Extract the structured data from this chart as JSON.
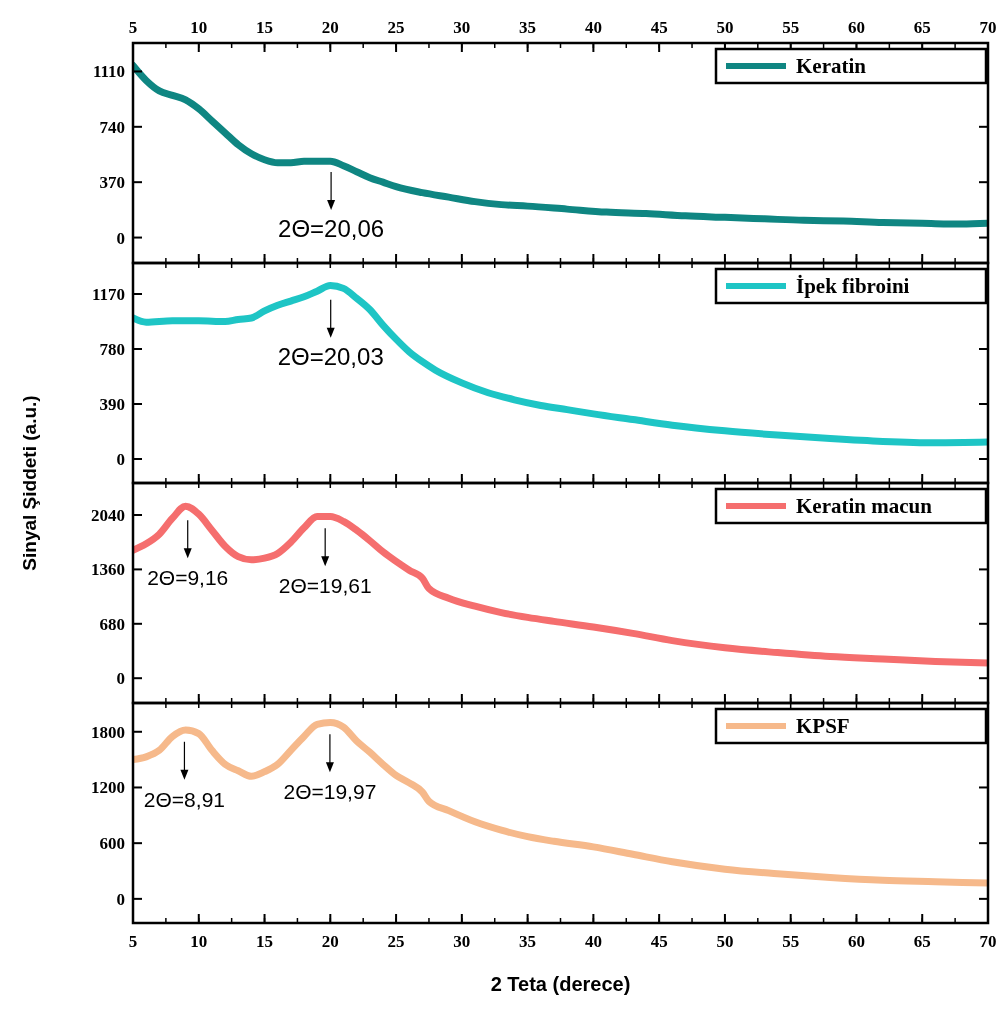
{
  "chart_data": [
    {
      "type": "line",
      "xlim": [
        5,
        70
      ],
      "xticks": [
        5,
        10,
        15,
        20,
        25,
        30,
        35,
        40,
        45,
        50,
        55,
        60,
        65,
        70
      ],
      "x2lim": [
        5,
        70
      ],
      "x2ticks": [
        5,
        10,
        15,
        20,
        25,
        30,
        35,
        40,
        45,
        50,
        55,
        60,
        65,
        70
      ],
      "tick_labels": "y",
      "ylim": [
        -170,
        1300
      ],
      "yticks": [
        0,
        370,
        740,
        1110
      ],
      "legend": "top right",
      "series": [
        {
          "name": "Keratin",
          "color": "#0f8682",
          "x": [
            5,
            6,
            7,
            8,
            9,
            10,
            11,
            12,
            13,
            14,
            15,
            16,
            17,
            18,
            19,
            20,
            21,
            22,
            23,
            24,
            25,
            27,
            29,
            31,
            33,
            35,
            38,
            41,
            44,
            47,
            50,
            53,
            56,
            59,
            62,
            65,
            68,
            70
          ],
          "values": [
            1150,
            1050,
            980,
            950,
            920,
            860,
            780,
            700,
            620,
            560,
            520,
            500,
            500,
            510,
            510,
            510,
            480,
            440,
            400,
            370,
            340,
            300,
            270,
            240,
            220,
            210,
            190,
            170,
            160,
            145,
            135,
            125,
            115,
            110,
            100,
            95,
            90,
            95
          ]
        }
      ],
      "annotations": [
        {
          "text": "2Θ=20,06",
          "x": 20.06,
          "y": 505
        }
      ]
    },
    {
      "type": "line",
      "xlim": [
        5,
        70
      ],
      "xticks": [
        5,
        10,
        15,
        20,
        25,
        30,
        35,
        40,
        45,
        50,
        55,
        60,
        65,
        70
      ],
      "tick_labels": "y",
      "ylim": [
        -170,
        1390
      ],
      "yticks": [
        0,
        390,
        780,
        1170
      ],
      "legend": "top right",
      "series": [
        {
          "name": "İpek fibroini",
          "color": "#1ec5c5",
          "x": [
            5,
            6,
            8,
            10,
            12,
            13,
            14,
            15,
            16,
            17,
            18,
            19,
            20,
            21,
            22,
            23,
            24,
            25,
            26,
            27,
            28,
            30,
            32,
            34,
            36,
            38,
            40,
            43,
            46,
            50,
            54,
            58,
            62,
            66,
            70
          ],
          "values": [
            1000,
            970,
            980,
            980,
            975,
            990,
            1000,
            1050,
            1090,
            1120,
            1150,
            1190,
            1230,
            1210,
            1140,
            1060,
            950,
            850,
            760,
            690,
            630,
            540,
            470,
            420,
            380,
            350,
            320,
            280,
            240,
            200,
            170,
            145,
            125,
            115,
            120
          ]
        }
      ],
      "annotations": [
        {
          "text": "2Θ=20,03",
          "x": 20.03,
          "y": 1200
        }
      ]
    },
    {
      "type": "line",
      "xlim": [
        5,
        70
      ],
      "xticks": [
        5,
        10,
        15,
        20,
        25,
        30,
        35,
        40,
        45,
        50,
        55,
        60,
        65,
        70
      ],
      "tick_labels": "y",
      "ylim": [
        -310,
        2440
      ],
      "yticks": [
        0,
        680,
        1360,
        2040
      ],
      "legend": "top right",
      "ylabel": "Sinyal Şiddeti (a.u.)",
      "series": [
        {
          "name": "Keratin macun",
          "color": "#f56e6e",
          "x": [
            5,
            6,
            7,
            8,
            9,
            10,
            11,
            12,
            13,
            14,
            15,
            16,
            17,
            18,
            19,
            20,
            21,
            22,
            23,
            24,
            25,
            26,
            27,
            27.5,
            29,
            31,
            33,
            35,
            37,
            40,
            43,
            46,
            50,
            54,
            58,
            62,
            66,
            70
          ],
          "values": [
            1600,
            1680,
            1800,
            2000,
            2150,
            2050,
            1850,
            1650,
            1520,
            1480,
            1500,
            1560,
            1700,
            1880,
            2020,
            2020,
            1960,
            1850,
            1720,
            1580,
            1460,
            1350,
            1250,
            1120,
            1000,
            900,
            820,
            760,
            710,
            640,
            560,
            470,
            380,
            320,
            270,
            240,
            210,
            190
          ]
        }
      ],
      "annotations": [
        {
          "text": "2Θ=9,16",
          "x": 9.16,
          "y": 2100
        },
        {
          "text": "2Θ=19,61",
          "x": 19.61,
          "y": 2000
        }
      ]
    },
    {
      "type": "line",
      "xlim": [
        5,
        70
      ],
      "xticks": [
        5,
        10,
        15,
        20,
        25,
        30,
        35,
        40,
        45,
        50,
        55,
        60,
        65,
        70
      ],
      "ylim": [
        -260,
        2110
      ],
      "yticks": [
        0,
        600,
        1200,
        1800
      ],
      "legend": "top right",
      "xlabel": "2 Teta (derece)",
      "series": [
        {
          "name": "KPSF",
          "color": "#f6b98b",
          "x": [
            5,
            6,
            7,
            8,
            9,
            10,
            11,
            12,
            13,
            14,
            15,
            16,
            17,
            18,
            19,
            20,
            21,
            22,
            23,
            24,
            25,
            26,
            27,
            27.5,
            29,
            31,
            33,
            35,
            37,
            40,
            43,
            46,
            50,
            54,
            58,
            62,
            66,
            70
          ],
          "values": [
            1500,
            1530,
            1600,
            1750,
            1820,
            1780,
            1600,
            1450,
            1380,
            1320,
            1370,
            1450,
            1600,
            1750,
            1880,
            1900,
            1850,
            1700,
            1580,
            1450,
            1330,
            1250,
            1150,
            1050,
            950,
            830,
            740,
            670,
            620,
            560,
            480,
            400,
            320,
            270,
            230,
            200,
            185,
            170
          ]
        }
      ],
      "annotations": [
        {
          "text": "2Θ=8,91",
          "x": 8.91,
          "y": 1800
        },
        {
          "text": "2Θ=19,97",
          "x": 19.97,
          "y": 1880
        }
      ]
    }
  ]
}
